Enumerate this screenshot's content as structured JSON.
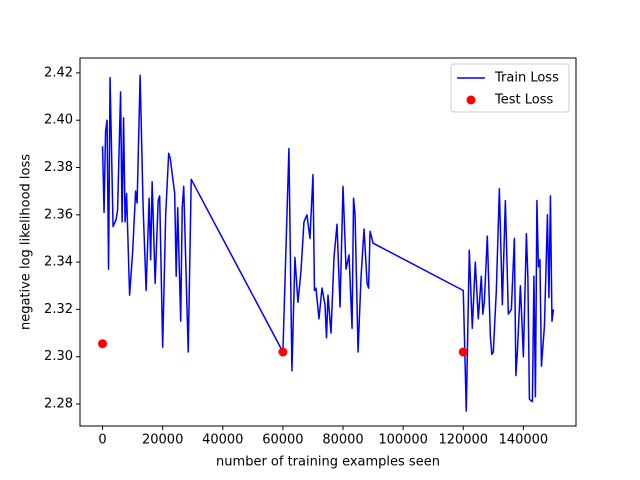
{
  "chart_data": {
    "type": "line",
    "xlabel": "number of training examples seen",
    "ylabel": "negative log likelihood loss",
    "xlim": [
      -7500,
      157500
    ],
    "ylim": [
      2.2707,
      2.4263
    ],
    "xticks": [
      0,
      20000,
      40000,
      60000,
      80000,
      100000,
      120000,
      140000
    ],
    "yticks": [
      2.28,
      {
        "value": 2.3,
        "label": "2.30"
      },
      2.32,
      2.34,
      2.36,
      2.38,
      {
        "value": 2.4,
        "label": "2.40"
      },
      2.42
    ],
    "legend": "upper right",
    "grid": false,
    "series": [
      {
        "name": "Train Loss",
        "type": "line",
        "color": "#0000ff",
        "x": [
          0,
          500,
          1000,
          1500,
          2000,
          2500,
          3500,
          4500,
          5000,
          6000,
          6500,
          7000,
          7500,
          8000,
          9000,
          10000,
          11000,
          11500,
          12500,
          13500,
          14500,
          15500,
          16000,
          16500,
          17500,
          18500,
          19000,
          20000,
          21000,
          22000,
          22500,
          24000,
          24500,
          25000,
          26000,
          26500,
          27000,
          28500,
          29500,
          60000,
          62000,
          63000,
          64000,
          65000,
          66000,
          67000,
          68000,
          69000,
          70000,
          70500,
          71000,
          72000,
          73000,
          74000,
          74500,
          75000,
          76000,
          77000,
          78000,
          79000,
          80000,
          81000,
          82000,
          83000,
          83500,
          84000,
          85000,
          86000,
          87000,
          88000,
          88500,
          89000,
          90000,
          120000,
          121000,
          122000,
          123000,
          124000,
          125000,
          126000,
          126500,
          127000,
          128000,
          129000,
          129500,
          130000,
          131000,
          132000,
          133000,
          134000,
          135000,
          136000,
          137000,
          137500,
          138000,
          139000,
          140000,
          141000,
          141500,
          142000,
          143000,
          143500,
          144000,
          144500,
          145000,
          145500,
          146000,
          147000,
          148000,
          148500,
          149000,
          149500,
          150000
        ],
        "values": [
          2.389,
          2.361,
          2.395,
          2.4,
          2.337,
          2.418,
          2.355,
          2.358,
          2.362,
          2.412,
          2.357,
          2.401,
          2.357,
          2.369,
          2.326,
          2.344,
          2.37,
          2.365,
          2.419,
          2.363,
          2.328,
          2.367,
          2.341,
          2.374,
          2.331,
          2.366,
          2.368,
          2.304,
          2.36,
          2.386,
          2.384,
          2.369,
          2.334,
          2.363,
          2.315,
          2.363,
          2.372,
          2.302,
          2.375,
          2.302,
          2.388,
          2.294,
          2.342,
          2.323,
          2.336,
          2.357,
          2.36,
          2.35,
          2.377,
          2.328,
          2.329,
          2.316,
          2.329,
          2.322,
          2.308,
          2.326,
          2.31,
          2.342,
          2.356,
          2.321,
          2.372,
          2.337,
          2.343,
          2.312,
          2.367,
          2.36,
          2.302,
          2.334,
          2.354,
          2.331,
          2.329,
          2.353,
          2.348,
          2.328,
          2.277,
          2.345,
          2.312,
          2.34,
          2.316,
          2.334,
          2.318,
          2.323,
          2.351,
          2.309,
          2.301,
          2.302,
          2.328,
          2.371,
          2.322,
          2.366,
          2.318,
          2.32,
          2.35,
          2.292,
          2.302,
          2.33,
          2.3,
          2.352,
          2.333,
          2.282,
          2.281,
          2.334,
          2.283,
          2.366,
          2.338,
          2.341,
          2.296,
          2.313,
          2.36,
          2.325,
          2.368,
          2.315,
          2.32
        ]
      },
      {
        "name": "Test Loss",
        "type": "scatter",
        "color": "#ff0000",
        "x": [
          0,
          60000,
          120000
        ],
        "values": [
          2.3055,
          2.302,
          2.302
        ]
      }
    ]
  }
}
